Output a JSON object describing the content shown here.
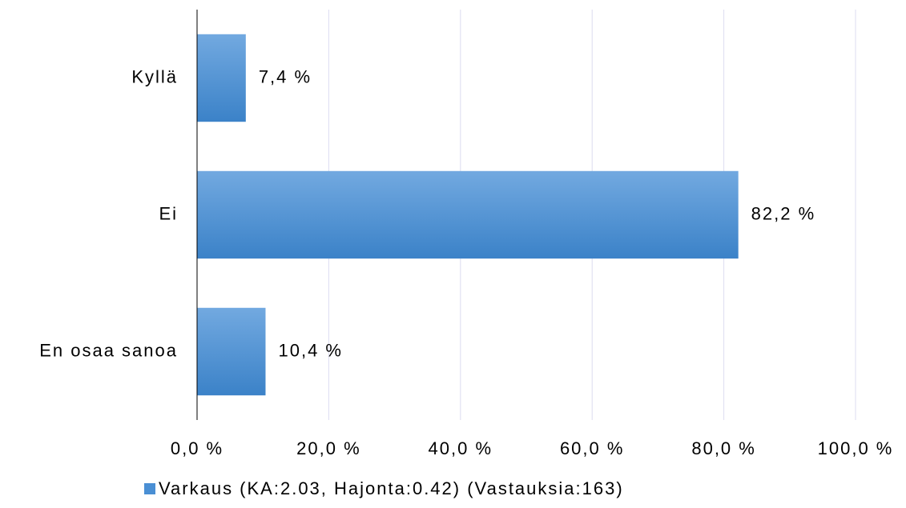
{
  "chart_data": {
    "type": "bar",
    "orientation": "horizontal",
    "categories": [
      "Kyllä",
      "Ei",
      "En osaa sanoa"
    ],
    "series": [
      {
        "name": "Varkaus (KA:2.03, Hajonta:0.42) (Vastauksia:163)",
        "color": "#4a8fd4",
        "values": [
          7.4,
          82.2,
          10.4
        ],
        "value_labels": [
          "7,4 %",
          "82,2 %",
          "10,4 %"
        ]
      }
    ],
    "xlim": [
      0,
      100
    ],
    "xticks": [
      {
        "value": 0,
        "label": "0,0 %"
      },
      {
        "value": 20,
        "label": "20,0 %"
      },
      {
        "value": 40,
        "label": "40,0 %"
      },
      {
        "value": 60,
        "label": "60,0 %"
      },
      {
        "value": 80,
        "label": "80,0 %"
      },
      {
        "value": 100,
        "label": "100,0 %"
      }
    ],
    "grid": true,
    "legend": "bottom"
  }
}
